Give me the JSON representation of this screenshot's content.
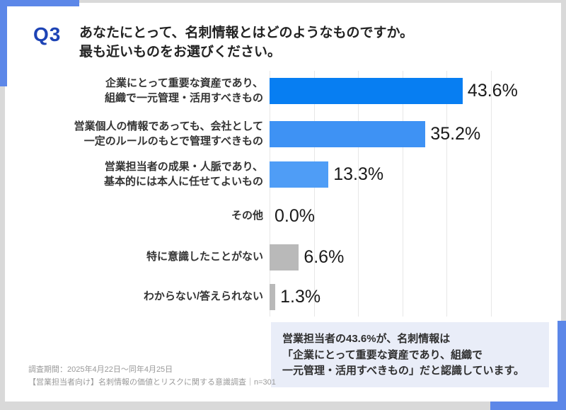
{
  "colors": {
    "accent_corner": "#5c87e8",
    "q_label_blue": "#1d43b5",
    "callout_bg": "#e9edf8",
    "gridline": "#e7e7e7",
    "page_bg": "#ffffff",
    "outer_bg": "#d9d9d9"
  },
  "header": {
    "q_label": "Q3",
    "title": "あなたにとって、名刺情報とはどのようなものですか。\n最も近いものをお選びください。"
  },
  "chart_data": {
    "type": "bar",
    "orientation": "horizontal",
    "categories": [
      "企業にとって重要な資産であり、\n組織で一元管理・活用すべきもの",
      "営業個人の情報であっても、会社として\n一定のルールのもとで管理すべきもの",
      "営業担当者の成果・人脈であり、\n基本的には本人に任せてよいもの",
      "その他",
      "特に意識したことがない",
      "わからない/答えられない"
    ],
    "values": [
      43.6,
      35.2,
      13.3,
      0.0,
      6.6,
      1.3
    ],
    "value_labels": [
      "43.6%",
      "35.2%",
      "13.3%",
      "0.0%",
      "6.6%",
      "1.3%"
    ],
    "bar_colors": [
      "#077ef2",
      "#3e92f4",
      "#4f9df6",
      "#b9b9b9",
      "#b9b9b9",
      "#b9b9b9"
    ],
    "xlim": [
      0,
      50
    ],
    "gridline_interval": 10,
    "grid": true,
    "legend": false,
    "title": "",
    "xlabel": "",
    "ylabel": ""
  },
  "callout": {
    "text": "営業担当者の43.6%が、名刺情報は\n「企業にとって重要な資産であり、組織で\n一元管理・活用すべきもの」だと認識しています。"
  },
  "footer": {
    "line1": "調査期間：2025年4月22日～同年4月25日",
    "line2": "【営業担当者向け】名刺情報の価値とリスクに関する意識調査｜n=301"
  }
}
